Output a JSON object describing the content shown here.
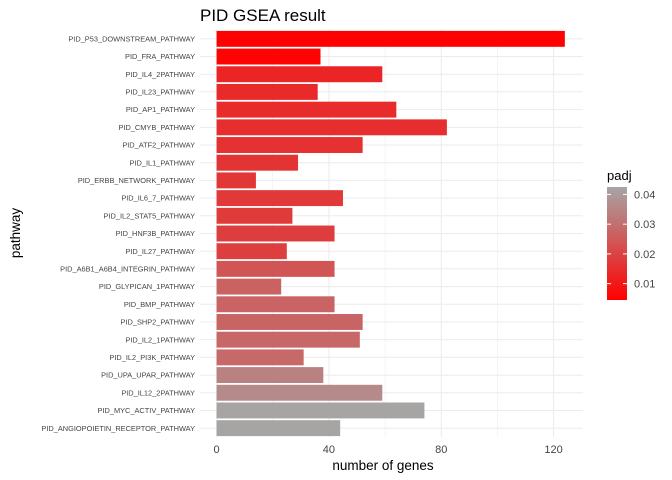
{
  "chart_data": {
    "type": "bar",
    "orientation": "horizontal",
    "title": "PID GSEA result",
    "xlabel": "number of genes",
    "ylabel": "pathway",
    "xlim": [
      0,
      128
    ],
    "xticks": [
      0,
      40,
      80,
      120
    ],
    "grid": true,
    "legend": {
      "title": "padj",
      "position": "right",
      "range": [
        0.0045,
        0.0425
      ],
      "ticks": [
        0.01,
        0.02,
        0.03,
        0.04
      ],
      "low_color": "#FF0000",
      "high_color": "#A6A6A6"
    },
    "categories": [
      "PID_P53_DOWNSTREAM_PATHWAY",
      "PID_FRA_PATHWAY",
      "PID_IL4_2PATHWAY",
      "PID_IL23_PATHWAY",
      "PID_AP1_PATHWAY",
      "PID_CMYB_PATHWAY",
      "PID_ATF2_PATHWAY",
      "PID_IL1_PATHWAY",
      "PID_ERBB_NETWORK_PATHWAY",
      "PID_IL6_7_PATHWAY",
      "PID_IL2_STAT5_PATHWAY",
      "PID_HNF3B_PATHWAY",
      "PID_IL27_PATHWAY",
      "PID_A6B1_A6B4_INTEGRIN_PATHWAY",
      "PID_GLYPICAN_1PATHWAY",
      "PID_BMP_PATHWAY",
      "PID_SHP2_PATHWAY",
      "PID_IL2_1PATHWAY",
      "PID_IL2_PI3K_PATHWAY",
      "PID_UPA_UPAR_PATHWAY",
      "PID_IL12_2PATHWAY",
      "PID_MYC_ACTIV_PATHWAY",
      "PID_ANGIOPOIETIN_RECEPTOR_PATHWAY"
    ],
    "values": [
      124,
      37,
      59,
      36,
      64,
      82,
      52,
      29,
      14,
      45,
      27,
      42,
      25,
      42,
      23,
      42,
      52,
      51,
      31,
      38,
      59,
      74,
      44
    ],
    "padj": [
      0.0048,
      0.0052,
      0.013,
      0.014,
      0.0145,
      0.015,
      0.0158,
      0.0165,
      0.017,
      0.0175,
      0.018,
      0.0185,
      0.019,
      0.024,
      0.027,
      0.0272,
      0.0275,
      0.028,
      0.0285,
      0.034,
      0.036,
      0.042,
      0.042
    ]
  }
}
